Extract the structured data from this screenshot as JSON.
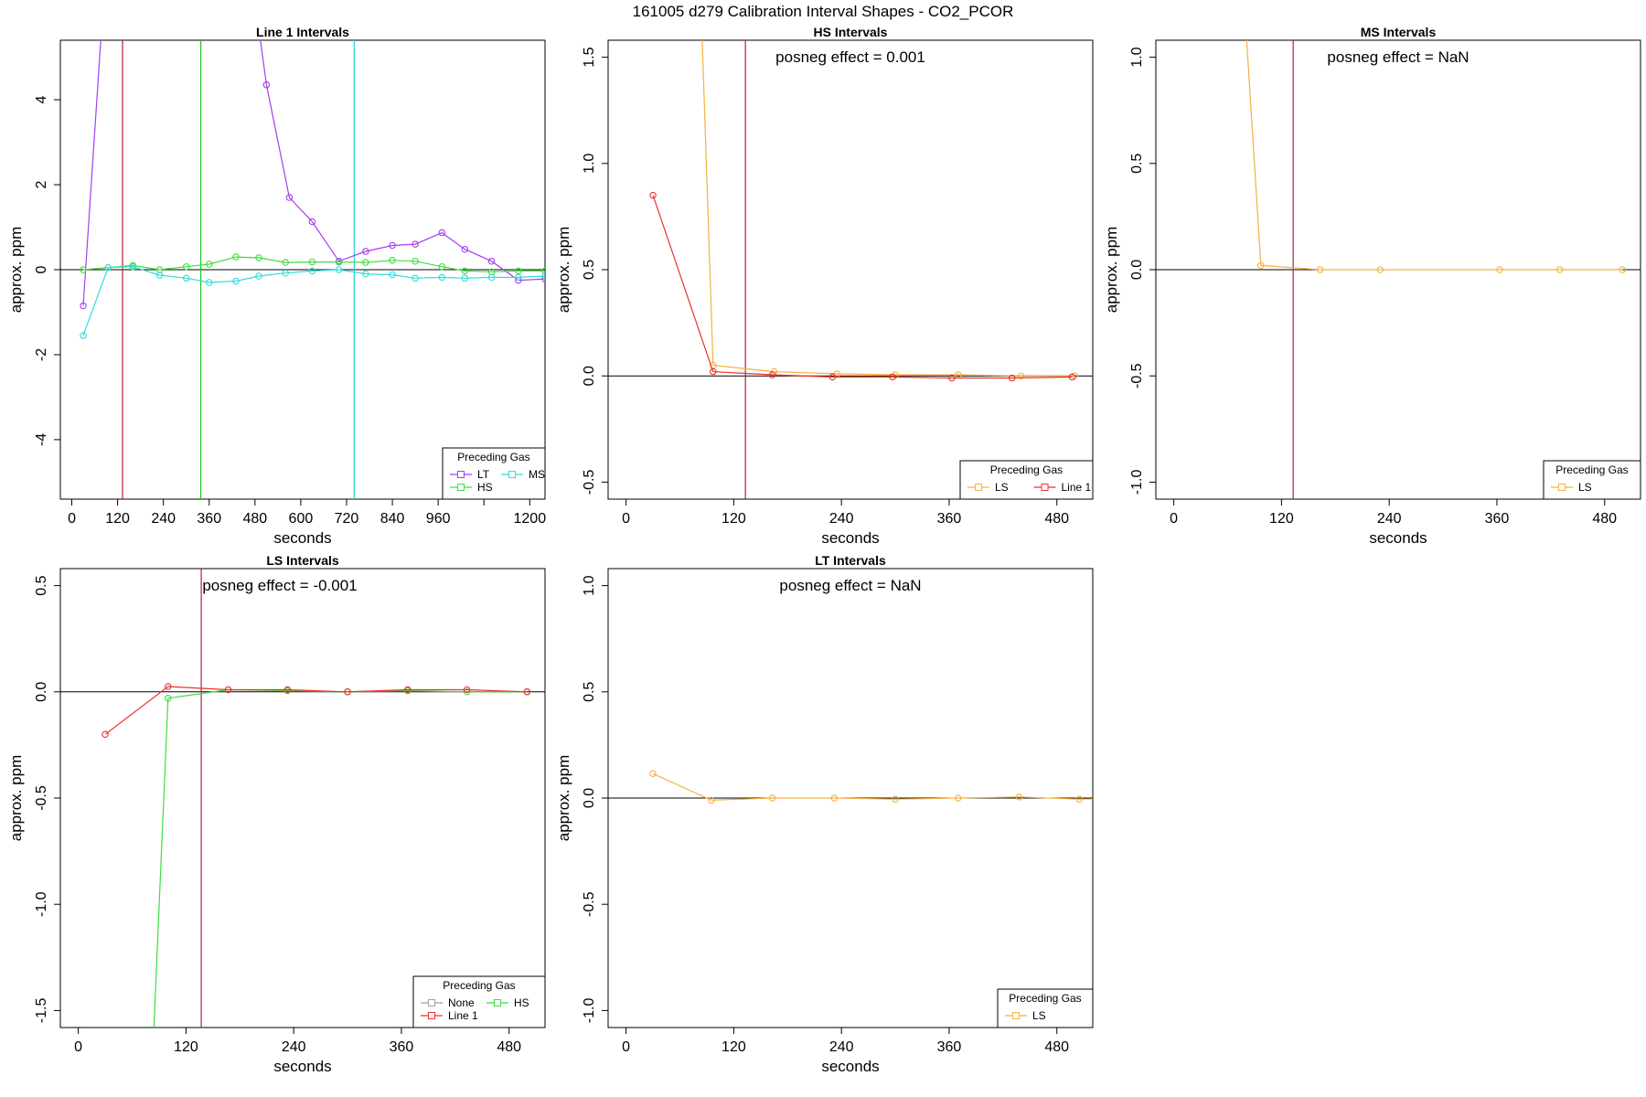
{
  "figure_title": "161005  d279   Calibration Interval Shapes - CO2_PCOR",
  "chart_data": [
    {
      "id": "line1",
      "type": "line",
      "title": "Line 1 Intervals",
      "xlabel": "seconds",
      "ylabel": "approx. ppm",
      "xlim": [
        -30,
        1240
      ],
      "ylim": [
        -5.4,
        5.4
      ],
      "xticks": [
        0,
        120,
        240,
        360,
        480,
        600,
        720,
        840,
        960,
        1080,
        1200
      ],
      "xtick_labels": [
        "0",
        "120",
        "240",
        "360",
        "480",
        "600",
        "720",
        "840",
        "960",
        "",
        "1200"
      ],
      "yticks": [
        -4,
        -2,
        0,
        2,
        4
      ],
      "ytick_labels": [
        "-4",
        "-2",
        "0",
        "2",
        "4"
      ],
      "posneg": "",
      "vlines": [
        {
          "x": 133,
          "color": "#b22234"
        },
        {
          "x": 338,
          "color": "#22c222"
        },
        {
          "x": 740,
          "color": "#22d3d3"
        }
      ],
      "legend": {
        "title": "Preceding Gas",
        "position": "bottom-right",
        "columns": 2,
        "entries": [
          "LT",
          "MS",
          "HS"
        ]
      },
      "series": [
        {
          "name": "LT",
          "color": "#a63df0",
          "x": [
            30,
            95,
            455,
            510,
            570,
            630,
            700,
            770,
            840,
            900,
            970,
            1030,
            1100,
            1170,
            1240
          ],
          "y": [
            -0.85,
            8,
            8,
            4.35,
            1.7,
            1.13,
            0.2,
            0.43,
            0.57,
            0.6,
            0.87,
            0.48,
            0.2,
            -0.25,
            -0.22
          ]
        },
        {
          "name": "HS",
          "color": "#3ede3e",
          "x": [
            30,
            95,
            160,
            230,
            300,
            360,
            430,
            490,
            560,
            630,
            700,
            770,
            840,
            900,
            970,
            1030,
            1100,
            1170,
            1240
          ],
          "y": [
            0.0,
            0.05,
            0.1,
            0.0,
            0.07,
            0.13,
            0.3,
            0.28,
            0.17,
            0.18,
            0.18,
            0.17,
            0.22,
            0.2,
            0.07,
            -0.03,
            -0.05,
            -0.03,
            -0.03
          ]
        },
        {
          "name": "MS",
          "color": "#33dcdc",
          "x": [
            30,
            95,
            160,
            230,
            300,
            360,
            430,
            490,
            560,
            630,
            700,
            770,
            840,
            900,
            970,
            1030,
            1100,
            1170,
            1240
          ],
          "y": [
            -1.55,
            0.05,
            0.07,
            -0.13,
            -0.2,
            -0.3,
            -0.27,
            -0.15,
            -0.08,
            -0.03,
            0.0,
            -0.1,
            -0.12,
            -0.2,
            -0.18,
            -0.2,
            -0.18,
            -0.18,
            -0.15
          ]
        }
      ]
    },
    {
      "id": "hs",
      "type": "line",
      "title": "HS Intervals",
      "xlabel": "seconds",
      "ylabel": "approx. ppm",
      "xlim": [
        -20,
        520
      ],
      "ylim": [
        -0.58,
        1.58
      ],
      "xticks": [
        0,
        120,
        240,
        360,
        480
      ],
      "xtick_labels": [
        "0",
        "120",
        "240",
        "360",
        "480"
      ],
      "yticks": [
        -0.5,
        0.0,
        0.5,
        1.0,
        1.5
      ],
      "ytick_labels": [
        "-0.5",
        "0.0",
        "0.5",
        "1.0",
        "1.5"
      ],
      "posneg": "posneg effect = 0.001",
      "vlines": [
        {
          "x": 133,
          "color": "#b22234"
        }
      ],
      "legend": {
        "title": "Preceding Gas",
        "position": "bottom-right",
        "columns": 2,
        "entries": [
          "LS",
          "Line 1"
        ]
      },
      "series": [
        {
          "name": "LS",
          "color": "#f5b041",
          "x": [
            80,
            97,
            165,
            235,
            300,
            370,
            440,
            500
          ],
          "y": [
            2.2,
            0.05,
            0.02,
            0.01,
            0.005,
            0.005,
            0.0,
            0.0
          ]
        },
        {
          "name": "Line 1",
          "color": "#e8322e",
          "x": [
            30,
            97,
            163,
            230,
            297,
            363,
            430,
            497
          ],
          "y": [
            0.85,
            0.02,
            0.005,
            -0.005,
            -0.005,
            -0.01,
            -0.01,
            -0.005
          ]
        }
      ]
    },
    {
      "id": "ms",
      "type": "line",
      "title": "MS Intervals",
      "xlabel": "seconds",
      "ylabel": "approx. ppm",
      "xlim": [
        -20,
        520
      ],
      "ylim": [
        -1.08,
        1.08
      ],
      "xticks": [
        0,
        120,
        240,
        360,
        480
      ],
      "xtick_labels": [
        "0",
        "120",
        "240",
        "360",
        "480"
      ],
      "yticks": [
        -1.0,
        -0.5,
        0.0,
        0.5,
        1.0
      ],
      "ytick_labels": [
        "-1.0",
        "-0.5",
        "0.0",
        "0.5",
        "1.0"
      ],
      "posneg": "posneg effect = NaN",
      "vlines": [
        {
          "x": 133,
          "color": "#b22234"
        }
      ],
      "legend": {
        "title": "Preceding Gas",
        "position": "bottom-right",
        "columns": 1,
        "entries": [
          "LS"
        ]
      },
      "series": [
        {
          "name": "LS",
          "color": "#f5b041",
          "x": [
            75,
            97,
            163,
            230,
            363,
            430,
            500
          ],
          "y": [
            1.5,
            0.02,
            0.0,
            0.0,
            0.0,
            0.0,
            0.0
          ]
        }
      ]
    },
    {
      "id": "ls",
      "type": "line",
      "title": "LS Intervals",
      "xlabel": "seconds",
      "ylabel": "approx. ppm",
      "xlim": [
        -20,
        520
      ],
      "ylim": [
        -1.58,
        0.58
      ],
      "xticks": [
        0,
        120,
        240,
        360,
        480
      ],
      "xtick_labels": [
        "0",
        "120",
        "240",
        "360",
        "480"
      ],
      "yticks": [
        -1.5,
        -1.0,
        -0.5,
        0.0,
        0.5
      ],
      "ytick_labels": [
        "-1.5",
        "-1.0",
        "-0.5",
        "0.0",
        "0.5"
      ],
      "posneg": "posneg effect = -0.001",
      "vlines": [
        {
          "x": 137,
          "color": "#b22234"
        }
      ],
      "legend": {
        "title": "Preceding Gas",
        "position": "bottom-right",
        "columns": 2,
        "entries": [
          "None",
          "HS",
          "Line 1"
        ]
      },
      "series": [
        {
          "name": "None",
          "color": "#a0a0a0",
          "x": [],
          "y": []
        },
        {
          "name": "HS",
          "color": "#3ede3e",
          "x": [
            80,
            100,
            167,
            233,
            300,
            367,
            433,
            500
          ],
          "y": [
            -2.0,
            -0.03,
            0.01,
            0.005,
            0.0,
            0.005,
            0.0,
            0.0
          ]
        },
        {
          "name": "Line 1",
          "color": "#e8322e",
          "x": [
            30,
            100,
            167,
            233,
            300,
            367,
            433,
            500
          ],
          "y": [
            -0.2,
            0.025,
            0.01,
            0.01,
            0.0,
            0.01,
            0.01,
            0.0
          ]
        }
      ]
    },
    {
      "id": "lt",
      "type": "line",
      "title": "LT Intervals",
      "xlabel": "seconds",
      "ylabel": "approx. ppm",
      "xlim": [
        -20,
        520
      ],
      "ylim": [
        -1.08,
        1.08
      ],
      "xticks": [
        0,
        120,
        240,
        360,
        480
      ],
      "xtick_labels": [
        "0",
        "120",
        "240",
        "360",
        "480"
      ],
      "yticks": [
        -1.0,
        -0.5,
        0.0,
        0.5,
        1.0
      ],
      "ytick_labels": [
        "-1.0",
        "-0.5",
        "0.0",
        "0.5",
        "1.0"
      ],
      "posneg": "posneg effect = NaN",
      "vlines": [
        {
          "x": 545,
          "color": "#b22234"
        }
      ],
      "legend": {
        "title": "Preceding Gas",
        "position": "bottom-right",
        "columns": 1,
        "entries": [
          "LS"
        ]
      },
      "series": [
        {
          "name": "LS",
          "color": "#f5b041",
          "x": [
            30,
            95,
            163,
            232,
            300,
            370,
            438,
            505,
            575
          ],
          "y": [
            0.115,
            -0.01,
            0.0,
            0.0,
            -0.005,
            0.0,
            0.005,
            -0.005,
            0.0
          ]
        }
      ]
    }
  ]
}
